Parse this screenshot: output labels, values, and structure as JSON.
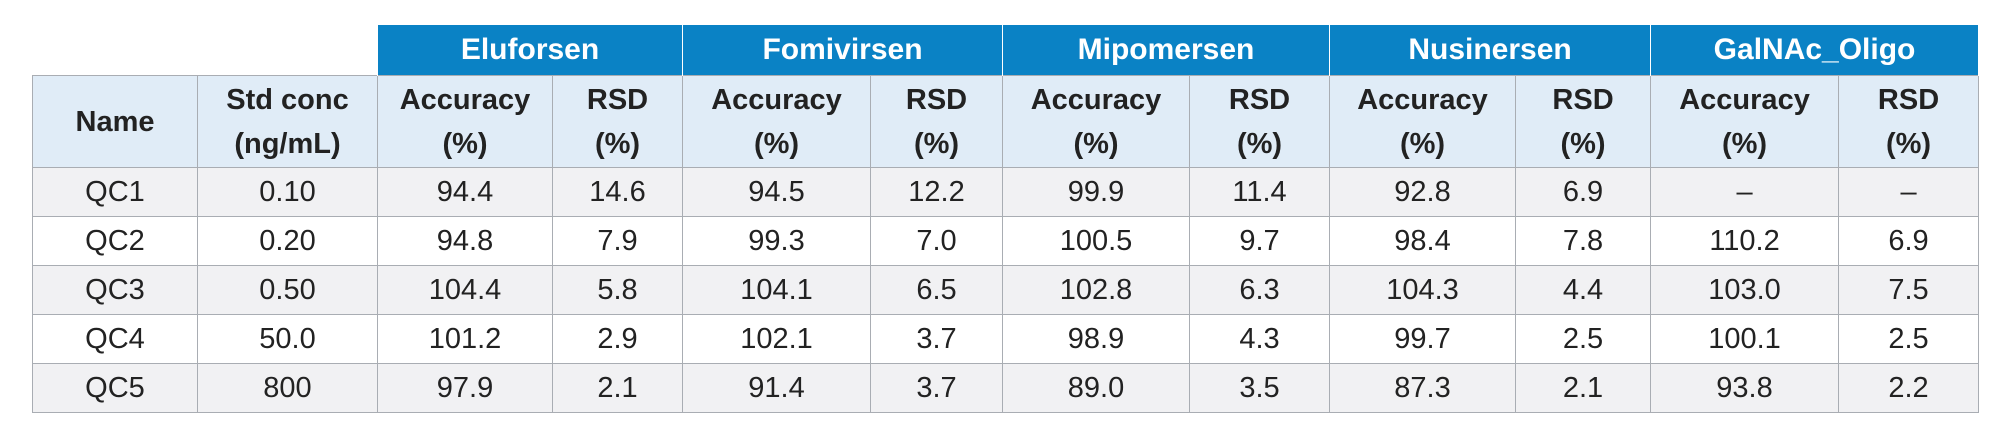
{
  "table": {
    "drugs": [
      "Eluforsen",
      "Fomivirsen",
      "Mipomersen",
      "Nusinersen",
      "GalNAc_Oligo"
    ],
    "name_header": "Name",
    "std_conc_header": {
      "line1": "Std conc",
      "line2": "(ng/mL)"
    },
    "accuracy_header": {
      "line1": "Accuracy",
      "line2": "(%)"
    },
    "rsd_header": {
      "line1": "RSD",
      "line2": "(%)"
    },
    "rows": [
      {
        "name": "QC1",
        "std_conc": "0.10",
        "values": [
          "94.4",
          "14.6",
          "94.5",
          "12.2",
          "99.9",
          "11.4",
          "92.8",
          "6.9",
          "–",
          "–"
        ]
      },
      {
        "name": "QC2",
        "std_conc": "0.20",
        "values": [
          "94.8",
          "7.9",
          "99.3",
          "7.0",
          "100.5",
          "9.7",
          "98.4",
          "7.8",
          "110.2",
          "6.9"
        ]
      },
      {
        "name": "QC3",
        "std_conc": "0.50",
        "values": [
          "104.4",
          "5.8",
          "104.1",
          "6.5",
          "102.8",
          "6.3",
          "104.3",
          "4.4",
          "103.0",
          "7.5"
        ]
      },
      {
        "name": "QC4",
        "std_conc": "50.0",
        "values": [
          "101.2",
          "2.9",
          "102.1",
          "3.7",
          "98.9",
          "4.3",
          "99.7",
          "2.5",
          "100.1",
          "2.5"
        ]
      },
      {
        "name": "QC5",
        "std_conc": "800",
        "values": [
          "97.9",
          "2.1",
          "91.4",
          "3.7",
          "89.0",
          "3.5",
          "87.3",
          "2.1",
          "93.8",
          "2.2"
        ]
      }
    ]
  },
  "colors": {
    "header_blue": "#0a82c5",
    "subheader_bg": "#e0ecf7",
    "stripe_bg": "#f1f1f3",
    "border": "#a9adb3"
  }
}
